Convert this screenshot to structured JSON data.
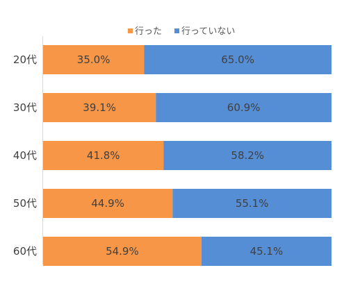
{
  "chart_data": {
    "type": "bar",
    "orientation": "horizontal",
    "stacked": true,
    "percent_stacked": true,
    "title": "",
    "xlabel": "",
    "ylabel": "",
    "xlim": [
      0,
      100
    ],
    "categories": [
      "20代",
      "30代",
      "40代",
      "50代",
      "60代"
    ],
    "series": [
      {
        "name": "行った",
        "values": [
          35.0,
          39.1,
          41.8,
          44.9,
          54.9
        ],
        "labels": [
          "35.0%",
          "39.1%",
          "41.8%",
          "44.9%",
          "54.9%"
        ],
        "color": "#f79646"
      },
      {
        "name": "行っていない",
        "values": [
          65.0,
          60.9,
          58.2,
          55.1,
          45.1
        ],
        "labels": [
          "65.0%",
          "60.9%",
          "58.2%",
          "55.1%",
          "45.1%"
        ],
        "color": "#558ed5"
      }
    ],
    "legend_position": "top",
    "grid": false
  }
}
